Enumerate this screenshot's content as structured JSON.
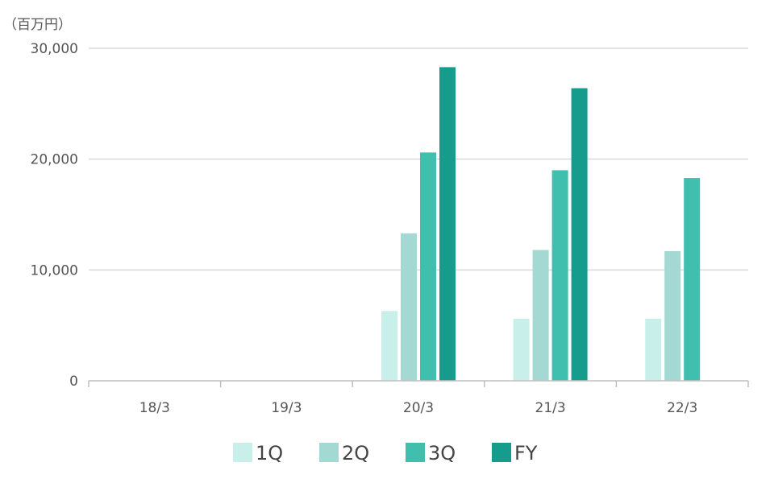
{
  "chart_data": {
    "type": "bar",
    "unit_label": "（百万円）",
    "categories": [
      "18/3",
      "19/3",
      "20/3",
      "21/3",
      "22/3"
    ],
    "series": [
      {
        "name": "1Q",
        "color": "#c8efea",
        "values": [
          null,
          null,
          6300,
          5600,
          5600
        ]
      },
      {
        "name": "2Q",
        "color": "#a3d9d2",
        "values": [
          null,
          null,
          13300,
          11800,
          11700
        ]
      },
      {
        "name": "3Q",
        "color": "#40bfae",
        "values": [
          null,
          null,
          20600,
          19000,
          18300
        ]
      },
      {
        "name": "FY",
        "color": "#169c8d",
        "values": [
          null,
          null,
          28300,
          26400,
          null
        ]
      }
    ],
    "yticks": [
      "0",
      "10,000",
      "20,000",
      "30,000"
    ],
    "ytick_values": [
      0,
      10000,
      20000,
      30000
    ],
    "ylim": [
      0,
      30000
    ],
    "grid": true,
    "legend_position": "bottom"
  }
}
